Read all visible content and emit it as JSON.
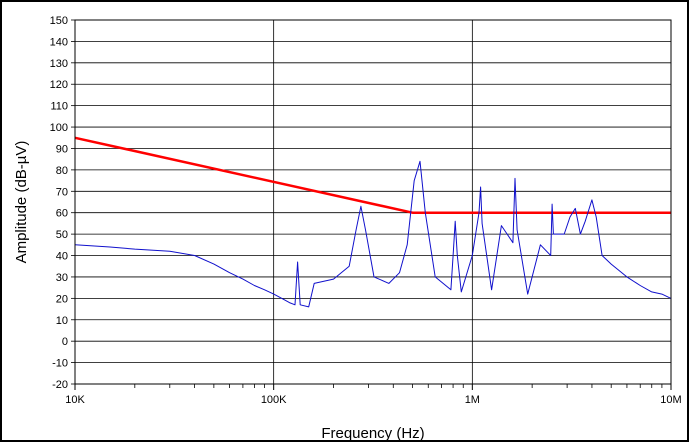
{
  "chart_data": {
    "type": "line",
    "title": "",
    "xlabel": "Frequency (Hz)",
    "ylabel": "Amplitude (dB-µV)",
    "x_scale": "log",
    "xlim": [
      10000,
      10000000
    ],
    "ylim": [
      -20,
      150
    ],
    "y_ticks": [
      -20,
      -10,
      0,
      10,
      20,
      30,
      40,
      50,
      60,
      70,
      80,
      90,
      100,
      110,
      120,
      130,
      140,
      150
    ],
    "y_tick_labels": [
      "-20",
      "-10",
      "0",
      "10",
      "20",
      "30",
      "40",
      "50",
      "60",
      "70",
      "80",
      "90",
      "100",
      "110",
      "120",
      "130",
      "140",
      "150"
    ],
    "x_major_ticks": [
      10000,
      100000,
      1000000,
      10000000
    ],
    "x_tick_labels": [
      "10K",
      "100K",
      "1M",
      "10M"
    ],
    "grid": true,
    "legend": "none",
    "series": [
      {
        "role": "limit",
        "color": "#ff0000",
        "x": [
          10000,
          500000,
          10000000
        ],
        "y": [
          95,
          60,
          60
        ]
      },
      {
        "role": "measurement",
        "color": "#1010cc",
        "x": [
          10000,
          15000,
          20000,
          30000,
          40000,
          50000,
          60000,
          70000,
          80000,
          90000,
          100000,
          110000,
          120000,
          128000,
          132000,
          136000,
          150000,
          160000,
          200000,
          240000,
          260000,
          275000,
          290000,
          320000,
          380000,
          430000,
          470000,
          510000,
          545000,
          580000,
          650000,
          780000,
          800000,
          820000,
          840000,
          880000,
          1000000,
          1080000,
          1100000,
          1120000,
          1250000,
          1400000,
          1600000,
          1640000,
          1680000,
          1900000,
          2200000,
          2480000,
          2520000,
          2560000,
          2900000,
          3100000,
          3300000,
          3500000,
          3700000,
          4000000,
          4200000,
          4500000,
          5000000,
          6000000,
          7000000,
          8000000,
          9000000,
          10000000
        ],
        "y": [
          45,
          44,
          43,
          42,
          40,
          36,
          32,
          29,
          26,
          24,
          22,
          20,
          18,
          17,
          37,
          17,
          16,
          27,
          29,
          35,
          52,
          63,
          52,
          30,
          27,
          32,
          45,
          75,
          84,
          60,
          30,
          24,
          40,
          56,
          40,
          23,
          40,
          60,
          72,
          55,
          24,
          54,
          46,
          76,
          52,
          22,
          45,
          40,
          64,
          50,
          50,
          58,
          62,
          50,
          56,
          66,
          58,
          40,
          36,
          30,
          26,
          23,
          22,
          20
        ]
      }
    ]
  }
}
